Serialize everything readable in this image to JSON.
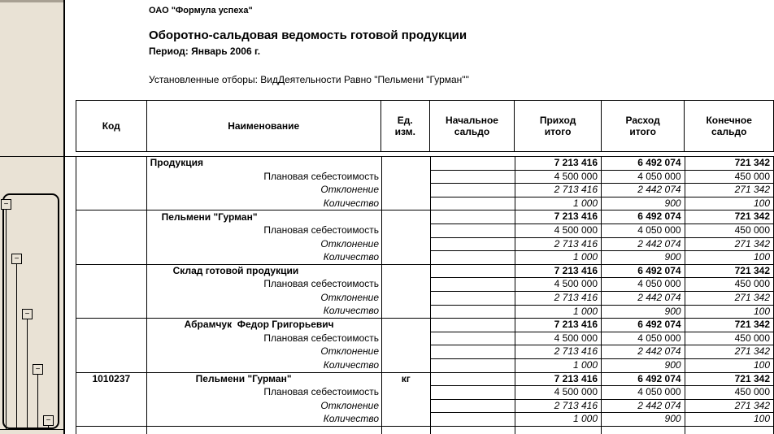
{
  "report": {
    "company": "ОАО \"Формула успеха\"",
    "title": "Оборотно-сальдовая ведомость готовой продукции",
    "period": "Период: Январь 2006 г.",
    "filters": "Установленные отборы: ВидДеятельности Равно \"Пельмени \"Гурман\"\""
  },
  "sidebar": {
    "collapse_glyph": "−"
  },
  "colors": {
    "margin_bg": "#E9E2D5",
    "margin_strip": "#A8A093",
    "grid_border": "#000000"
  },
  "table": {
    "headers": {
      "code": "Код",
      "name": "Наименование",
      "unit": "Ед.\nизм.",
      "opening": "Начальное\nсальдо",
      "inflow": "Приход\nитого",
      "outflow": "Расход\nитого",
      "closing": "Конечное\nсальдо"
    },
    "groups": [
      {
        "code": "",
        "name": "Продукция",
        "unit": "",
        "level": 1,
        "total": {
          "opening": "",
          "inflow": "7 213 416",
          "outflow": "6 492 074",
          "closing": "721 342"
        },
        "rows": [
          {
            "label": "Плановая себестоимость",
            "italic": false,
            "opening": "",
            "inflow": "4 500 000",
            "outflow": "4 050 000",
            "closing": "450 000"
          },
          {
            "label": "Отклонение",
            "italic": true,
            "opening": "",
            "inflow": "2 713 416",
            "outflow": "2 442 074",
            "closing": "271 342"
          },
          {
            "label": "Количество",
            "italic": true,
            "opening": "",
            "inflow": "1 000",
            "outflow": "900",
            "closing": "100"
          }
        ]
      },
      {
        "code": "",
        "name": "Пельмени \"Гурман\"",
        "unit": "",
        "level": 2,
        "total": {
          "opening": "",
          "inflow": "7 213 416",
          "outflow": "6 492 074",
          "closing": "721 342"
        },
        "rows": [
          {
            "label": "Плановая себестоимость",
            "italic": false,
            "opening": "",
            "inflow": "4 500 000",
            "outflow": "4 050 000",
            "closing": "450 000"
          },
          {
            "label": "Отклонение",
            "italic": true,
            "opening": "",
            "inflow": "2 713 416",
            "outflow": "2 442 074",
            "closing": "271 342"
          },
          {
            "label": "Количество",
            "italic": true,
            "opening": "",
            "inflow": "1 000",
            "outflow": "900",
            "closing": "100"
          }
        ]
      },
      {
        "code": "",
        "name": "Склад готовой продукции",
        "unit": "",
        "level": 3,
        "total": {
          "opening": "",
          "inflow": "7 213 416",
          "outflow": "6 492 074",
          "closing": "721 342"
        },
        "rows": [
          {
            "label": "Плановая себестоимость",
            "italic": false,
            "opening": "",
            "inflow": "4 500 000",
            "outflow": "4 050 000",
            "closing": "450 000"
          },
          {
            "label": "Отклонение",
            "italic": true,
            "opening": "",
            "inflow": "2 713 416",
            "outflow": "2 442 074",
            "closing": "271 342"
          },
          {
            "label": "Количество",
            "italic": true,
            "opening": "",
            "inflow": "1 000",
            "outflow": "900",
            "closing": "100"
          }
        ]
      },
      {
        "code": "",
        "name": "Абрамчук  Федор Григорьевич",
        "unit": "",
        "level": 4,
        "total": {
          "opening": "",
          "inflow": "7 213 416",
          "outflow": "6 492 074",
          "closing": "721 342"
        },
        "rows": [
          {
            "label": "Плановая себестоимость",
            "italic": false,
            "opening": "",
            "inflow": "4 500 000",
            "outflow": "4 050 000",
            "closing": "450 000"
          },
          {
            "label": "Отклонение",
            "italic": true,
            "opening": "",
            "inflow": "2 713 416",
            "outflow": "2 442 074",
            "closing": "271 342"
          },
          {
            "label": "Количество",
            "italic": true,
            "opening": "",
            "inflow": "1 000",
            "outflow": "900",
            "closing": "100"
          }
        ]
      },
      {
        "code": "1010237",
        "name": "Пельмени \"Гурман\"",
        "unit": "кг",
        "level": 5,
        "total": {
          "opening": "",
          "inflow": "7 213 416",
          "outflow": "6 492 074",
          "closing": "721 342"
        },
        "rows": [
          {
            "label": "Плановая себестоимость",
            "italic": false,
            "opening": "",
            "inflow": "4 500 000",
            "outflow": "4 050 000",
            "closing": "450 000"
          },
          {
            "label": "Отклонение",
            "italic": true,
            "opening": "",
            "inflow": "2 713 416",
            "outflow": "2 442 074",
            "closing": "271 342"
          },
          {
            "label": "Количество",
            "italic": true,
            "opening": "",
            "inflow": "1 000",
            "outflow": "900",
            "closing": "100"
          }
        ]
      }
    ]
  }
}
